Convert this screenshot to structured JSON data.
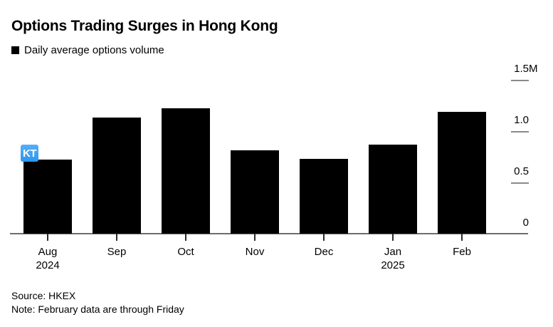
{
  "chart_data": {
    "type": "bar",
    "title": "Options Trading Surges in Hong Kong",
    "legend_position": "top-left",
    "categories": [
      {
        "month": "Aug",
        "year": "2024"
      },
      {
        "month": "Sep"
      },
      {
        "month": "Oct"
      },
      {
        "month": "Nov"
      },
      {
        "month": "Dec"
      },
      {
        "month": "Jan",
        "year": "2025"
      },
      {
        "month": "Feb"
      }
    ],
    "series": [
      {
        "name": "Daily average options volume",
        "values": [
          0.72,
          1.13,
          1.22,
          0.81,
          0.73,
          0.87,
          1.19
        ]
      }
    ],
    "unit": "M",
    "ylim": [
      0,
      1.5
    ],
    "yticks": [
      {
        "value": 0,
        "label": "0"
      },
      {
        "value": 0.5,
        "label": "0.5"
      },
      {
        "value": 1.0,
        "label": "1.0"
      },
      {
        "value": 1.5,
        "label": "1.5",
        "suffix": "M"
      }
    ],
    "grid": false,
    "bar_color": "#000000",
    "axis_color": "#6e6e6e"
  },
  "overlay_badge": {
    "label": "KT",
    "color": "#2e97ef",
    "text_color": "#ffffff"
  },
  "footer": {
    "source": "Source: HKEX",
    "note": "Note: February data are through Friday"
  }
}
